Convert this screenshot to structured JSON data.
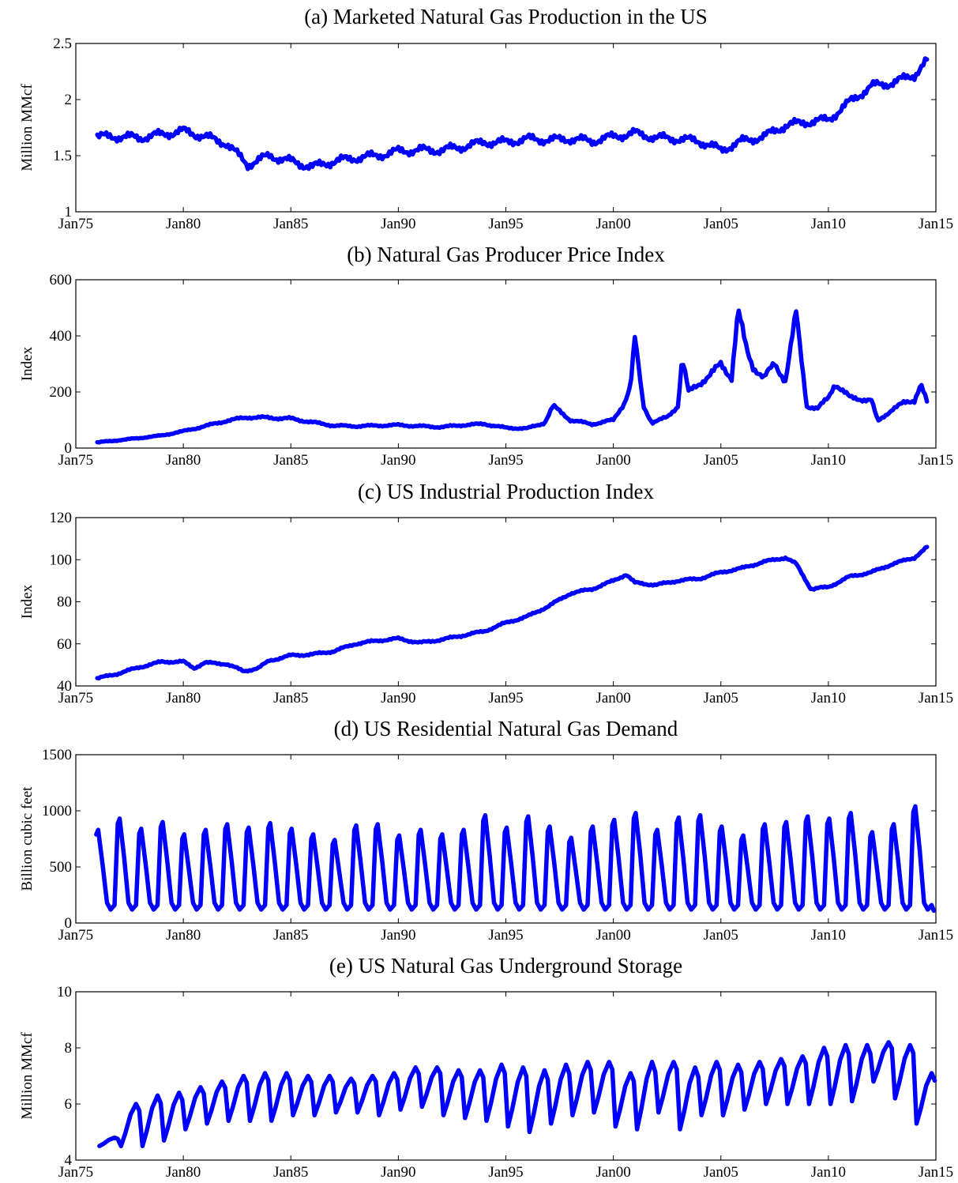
{
  "colors": {
    "series": "#0000ff",
    "axes": "#000000",
    "background": "#ffffff"
  },
  "chart_data": [
    {
      "type": "line",
      "title": "(a) Marketed Natural Gas Production in the US",
      "xlabel": "",
      "ylabel": "Million MMcf",
      "x_tick_labels": [
        "Jan75",
        "Jan80",
        "Jan85",
        "Jan90",
        "Jan95",
        "Jan00",
        "Jan05",
        "Jan10",
        "Jan15"
      ],
      "x_tick_years": [
        1975,
        1980,
        1985,
        1990,
        1995,
        2000,
        2005,
        2010,
        2015
      ],
      "xlim": [
        1975,
        2015
      ],
      "ylim": [
        1,
        2.5
      ],
      "y_ticks": [
        1,
        1.5,
        2,
        2.5
      ],
      "y_tick_labels": [
        "1",
        "1.5",
        "2",
        "2.5"
      ],
      "grid": false,
      "series": [
        {
          "x": [
            1976,
            1977,
            1978,
            1979,
            1980,
            1981,
            1982,
            1983,
            1984,
            1985,
            1986,
            1987,
            1988,
            1989,
            1990,
            1991,
            1992,
            1993,
            1994,
            1995,
            1996,
            1997,
            1998,
            1999,
            2000,
            2001,
            2002,
            2003,
            2004,
            2005,
            2006,
            2007,
            2008,
            2009,
            2010,
            2011,
            2012,
            2013,
            2014,
            2014.6
          ],
          "values": [
            1.67,
            1.67,
            1.66,
            1.69,
            1.72,
            1.67,
            1.61,
            1.42,
            1.5,
            1.45,
            1.4,
            1.45,
            1.48,
            1.5,
            1.54,
            1.55,
            1.55,
            1.58,
            1.62,
            1.62,
            1.65,
            1.64,
            1.65,
            1.63,
            1.67,
            1.7,
            1.66,
            1.65,
            1.63,
            1.55,
            1.63,
            1.67,
            1.77,
            1.8,
            1.82,
            1.98,
            2.12,
            2.15,
            2.22,
            2.35
          ]
        }
      ]
    },
    {
      "type": "line",
      "title": "(b) Natural Gas Producer Price Index",
      "xlabel": "",
      "ylabel": "Index",
      "x_tick_labels": [
        "Jan75",
        "Jan80",
        "Jan85",
        "Jan90",
        "Jan95",
        "Jan00",
        "Jan05",
        "Jan10",
        "Jan15"
      ],
      "x_tick_years": [
        1975,
        1980,
        1985,
        1990,
        1995,
        2000,
        2005,
        2010,
        2015
      ],
      "xlim": [
        1975,
        2015
      ],
      "ylim": [
        0,
        600
      ],
      "y_ticks": [
        0,
        200,
        400,
        600
      ],
      "y_tick_labels": [
        "0",
        "200",
        "400",
        "600"
      ],
      "grid": false,
      "series": [
        {
          "x": [
            1976,
            1977,
            1978,
            1979,
            1980,
            1981,
            1982,
            1983,
            1984,
            1985,
            1986,
            1987,
            1988,
            1989,
            1990,
            1991,
            1992,
            1993,
            1994,
            1995,
            1996,
            1996.8,
            1997.2,
            1998,
            1999,
            2000,
            2000.5,
            2000.8,
            2001,
            2001.4,
            2001.8,
            2002.5,
            2003,
            2003.2,
            2003.5,
            2004,
            2004.5,
            2005,
            2005.5,
            2005.8,
            2006.2,
            2006.5,
            2007,
            2007.5,
            2008,
            2008.5,
            2009,
            2009.5,
            2010,
            2010.3,
            2011,
            2012,
            2012.3,
            2013,
            2013.5,
            2014,
            2014.3,
            2014.6
          ],
          "values": [
            20,
            28,
            36,
            45,
            60,
            78,
            97,
            110,
            108,
            105,
            92,
            80,
            78,
            80,
            82,
            78,
            75,
            82,
            86,
            72,
            70,
            90,
            150,
            100,
            85,
            100,
            160,
            220,
            390,
            150,
            90,
            110,
            150,
            320,
            200,
            230,
            260,
            300,
            250,
            490,
            350,
            290,
            250,
            300,
            240,
            480,
            150,
            140,
            180,
            230,
            180,
            170,
            95,
            140,
            160,
            170,
            230,
            160
          ]
        }
      ]
    },
    {
      "type": "line",
      "title": "(c) US Industrial Production Index",
      "xlabel": "",
      "ylabel": "Index",
      "x_tick_labels": [
        "Jan75",
        "Jan80",
        "Jan85",
        "Jan90",
        "Jan95",
        "Jan00",
        "Jan05",
        "Jan10",
        "Jan15"
      ],
      "x_tick_years": [
        1975,
        1980,
        1985,
        1990,
        1995,
        2000,
        2005,
        2010,
        2015
      ],
      "xlim": [
        1975,
        2015
      ],
      "ylim": [
        40,
        120
      ],
      "y_ticks": [
        40,
        60,
        80,
        100,
        120
      ],
      "y_tick_labels": [
        "40",
        "60",
        "80",
        "100",
        "120"
      ],
      "grid": false,
      "series": [
        {
          "x": [
            1976,
            1977,
            1978,
            1979,
            1980,
            1980.5,
            1981,
            1982,
            1982.8,
            1983.5,
            1984,
            1985,
            1986,
            1987,
            1988,
            1989,
            1990,
            1991,
            1992,
            1993,
            1994,
            1995,
            1996,
            1997,
            1998,
            1999,
            2000,
            2000.6,
            2001,
            2002,
            2003,
            2004,
            2005,
            2006,
            2007,
            2008,
            2008.5,
            2009.2,
            2010,
            2011,
            2012,
            2013,
            2014,
            2014.6
          ],
          "values": [
            43.5,
            46,
            49,
            51.5,
            51.5,
            48.5,
            51,
            50.5,
            47,
            48.5,
            52,
            54.5,
            55,
            56.5,
            60,
            61.5,
            62.5,
            60.5,
            62,
            64,
            66,
            70,
            73,
            78,
            84,
            86,
            90,
            93,
            89,
            88,
            90,
            91,
            94,
            96,
            99,
            101,
            98,
            86,
            87,
            92,
            94,
            98,
            101,
            106
          ]
        }
      ]
    },
    {
      "type": "line",
      "title": "(d) US Residential Natural Gas Demand",
      "xlabel": "",
      "ylabel": "Billion cubic feet",
      "x_tick_labels": [
        "Jan75",
        "Jan80",
        "Jan85",
        "Jan90",
        "Jan95",
        "Jan00",
        "Jan05",
        "Jan10",
        "Jan15"
      ],
      "x_tick_years": [
        1975,
        1980,
        1985,
        1990,
        1995,
        2000,
        2005,
        2010,
        2015
      ],
      "xlim": [
        1975,
        2015
      ],
      "ylim": [
        0,
        1500
      ],
      "y_ticks": [
        0,
        500,
        1000,
        1500
      ],
      "y_tick_labels": [
        "0",
        "500",
        "1000",
        "1500"
      ],
      "grid": false,
      "seasonal_trough": 120,
      "series": [
        {
          "x": [
            1976,
            1977,
            1978,
            1979,
            1980,
            1981,
            1982,
            1983,
            1984,
            1985,
            1986,
            1987,
            1988,
            1989,
            1990,
            1991,
            1992,
            1993,
            1994,
            1995,
            1996,
            1997,
            1998,
            1999,
            2000,
            2001,
            2002,
            2003,
            2004,
            2005,
            2006,
            2007,
            2008,
            2009,
            2010,
            2011,
            2012,
            2013,
            2014
          ],
          "values": [
            830,
            930,
            840,
            900,
            790,
            830,
            880,
            850,
            890,
            840,
            790,
            740,
            870,
            880,
            780,
            830,
            790,
            830,
            960,
            850,
            950,
            860,
            760,
            860,
            920,
            980,
            830,
            940,
            960,
            860,
            780,
            880,
            900,
            950,
            930,
            980,
            810,
            880,
            1040
          ]
        }
      ]
    },
    {
      "type": "line",
      "title": "(e) US Natural Gas Underground Storage",
      "xlabel": "",
      "ylabel": "Million MMcf",
      "x_tick_labels": [
        "Jan75",
        "Jan80",
        "Jan85",
        "Jan90",
        "Jan95",
        "Jan00",
        "Jan05",
        "Jan10",
        "Jan15"
      ],
      "x_tick_years": [
        1975,
        1980,
        1985,
        1990,
        1995,
        2000,
        2005,
        2010,
        2015
      ],
      "xlim": [
        1975,
        2015
      ],
      "ylim": [
        4,
        10
      ],
      "y_ticks": [
        4,
        6,
        8,
        10
      ],
      "y_tick_labels": [
        "4",
        "6",
        "8",
        "10"
      ],
      "grid": false,
      "series": [
        {
          "x": [
            1976,
            1977,
            1978,
            1979,
            1980,
            1981,
            1982,
            1983,
            1984,
            1985,
            1986,
            1987,
            1988,
            1989,
            1990,
            1991,
            1992,
            1993,
            1994,
            1995,
            1996,
            1997,
            1998,
            1999,
            2000,
            2001,
            2002,
            2003,
            2004,
            2005,
            2006,
            2007,
            2008,
            2009,
            2010,
            2011,
            2012,
            2013,
            2014
          ],
          "peaks": [
            4.8,
            6.0,
            6.3,
            6.4,
            6.6,
            6.8,
            7.0,
            7.1,
            7.1,
            7.0,
            7.0,
            6.9,
            7.0,
            7.1,
            7.3,
            7.3,
            7.2,
            7.2,
            7.4,
            7.3,
            7.2,
            7.4,
            7.5,
            7.5,
            7.1,
            7.5,
            7.5,
            7.3,
            7.5,
            7.4,
            7.5,
            7.6,
            7.7,
            8.0,
            8.1,
            8.1,
            8.2,
            8.1,
            7.1
          ],
          "troughs": [
            4.5,
            4.5,
            4.5,
            4.7,
            5.1,
            5.3,
            5.4,
            5.4,
            5.4,
            5.6,
            5.6,
            5.7,
            5.7,
            5.6,
            5.8,
            5.9,
            5.6,
            5.5,
            5.4,
            5.2,
            5.0,
            5.3,
            5.6,
            5.7,
            5.2,
            5.1,
            5.7,
            5.1,
            5.6,
            5.6,
            5.8,
            6.0,
            6.0,
            6.0,
            6.0,
            6.1,
            6.8,
            6.2,
            5.3
          ]
        }
      ]
    }
  ]
}
